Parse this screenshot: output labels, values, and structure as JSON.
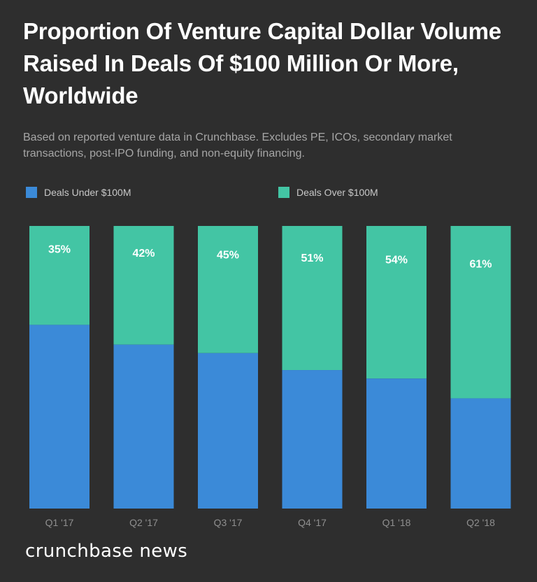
{
  "header": {
    "title": "Proportion Of Venture Capital Dollar Volume Raised In Deals Of $100 Million Or More, Worldwide",
    "subtitle": "Based on reported venture data in Crunchbase. Excludes PE, ICOs, secondary market transactions, post-IPO funding, and non-equity financing."
  },
  "colors": {
    "under": "#3b8ad8",
    "over": "#43c5a4",
    "background": "#2e2e2e"
  },
  "chart_data": {
    "type": "bar",
    "stacked": true,
    "categories": [
      "Q1 '17",
      "Q2 '17",
      "Q3 '17",
      "Q4 '17",
      "Q1 '18",
      "Q2 '18"
    ],
    "series": [
      {
        "name": "Deals Under $100M",
        "values": [
          65,
          58,
          55,
          49,
          46,
          39
        ]
      },
      {
        "name": "Deals Over $100M",
        "values": [
          35,
          42,
          45,
          51,
          54,
          61
        ]
      }
    ],
    "data_labels": [
      "35%",
      "42%",
      "45%",
      "51%",
      "54%",
      "61%"
    ],
    "ylim": [
      0,
      100
    ],
    "grid": false,
    "legend_position": "top-left"
  },
  "footer": {
    "brand": "crunchbase news"
  }
}
